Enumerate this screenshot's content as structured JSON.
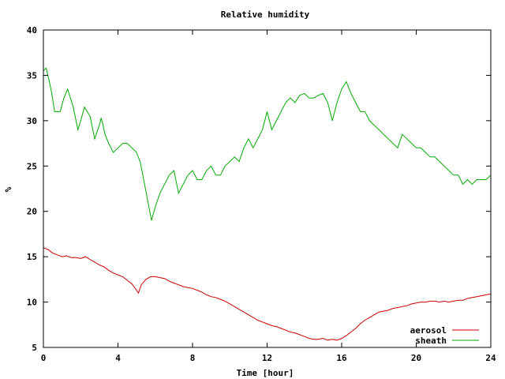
{
  "chart_data": {
    "type": "line",
    "title": "Relative humidity",
    "xlabel": "Time [hour]",
    "ylabel": "%",
    "xlim": [
      0,
      24
    ],
    "ylim": [
      5,
      40
    ],
    "xticks": [
      0,
      4,
      8,
      12,
      16,
      20,
      24
    ],
    "yticks": [
      5,
      10,
      15,
      20,
      25,
      30,
      35,
      40
    ],
    "grid": false,
    "legend": "bottom-right",
    "series": [
      {
        "name": "aerosol",
        "color": "#cc0000",
        "x": [
          0,
          0.25,
          0.5,
          0.75,
          1,
          1.25,
          1.5,
          1.75,
          2,
          2.25,
          2.5,
          2.75,
          3,
          3.25,
          3.5,
          3.75,
          4,
          4.25,
          4.5,
          4.75,
          5,
          5.1,
          5.25,
          5.5,
          5.75,
          6,
          6.25,
          6.5,
          6.75,
          7,
          7.25,
          7.5,
          7.75,
          8,
          8.25,
          8.5,
          8.75,
          9,
          9.25,
          9.5,
          9.75,
          10,
          10.25,
          10.5,
          10.75,
          11,
          11.25,
          11.5,
          11.75,
          12,
          12.25,
          12.5,
          12.75,
          13,
          13.25,
          13.5,
          13.75,
          14,
          14.25,
          14.5,
          14.75,
          15,
          15.25,
          15.5,
          15.75,
          16,
          16.25,
          16.5,
          16.75,
          17,
          17.25,
          17.5,
          17.75,
          18,
          18.25,
          18.5,
          18.75,
          19,
          19.25,
          19.5,
          19.75,
          20,
          20.25,
          20.5,
          20.75,
          21,
          21.25,
          21.5,
          21.75,
          22,
          22.25,
          22.5,
          22.75,
          23,
          23.25,
          23.5,
          23.75,
          24
        ],
        "y": [
          16.0,
          15.8,
          15.4,
          15.2,
          15.0,
          15.1,
          14.9,
          14.9,
          14.8,
          15.0,
          14.7,
          14.4,
          14.1,
          13.9,
          13.5,
          13.2,
          13.0,
          12.8,
          12.4,
          12.0,
          11.3,
          11.0,
          11.9,
          12.5,
          12.8,
          12.8,
          12.7,
          12.6,
          12.3,
          12.1,
          11.9,
          11.7,
          11.6,
          11.5,
          11.3,
          11.1,
          10.8,
          10.6,
          10.5,
          10.3,
          10.1,
          9.8,
          9.5,
          9.2,
          8.9,
          8.6,
          8.3,
          8.0,
          7.8,
          7.6,
          7.4,
          7.3,
          7.1,
          6.9,
          6.7,
          6.6,
          6.4,
          6.2,
          6.0,
          5.9,
          5.9,
          6.0,
          5.8,
          5.9,
          5.8,
          6.0,
          6.3,
          6.7,
          7.1,
          7.6,
          8.0,
          8.3,
          8.6,
          8.9,
          9.0,
          9.1,
          9.3,
          9.4,
          9.5,
          9.6,
          9.8,
          9.9,
          10.0,
          10.0,
          10.1,
          10.1,
          10.0,
          10.1,
          10.0,
          10.1,
          10.2,
          10.2,
          10.4,
          10.5,
          10.6,
          10.7,
          10.8,
          10.9
        ]
      },
      {
        "name": "sheath",
        "color": "#00aa00",
        "x": [
          0,
          0.15,
          0.3,
          0.45,
          0.6,
          0.9,
          1.1,
          1.3,
          1.6,
          1.85,
          2.0,
          2.2,
          2.5,
          2.75,
          3.0,
          3.1,
          3.2,
          3.3,
          3.5,
          3.75,
          4.0,
          4.25,
          4.5,
          4.75,
          5.0,
          5.2,
          5.8,
          6.0,
          6.25,
          6.5,
          6.75,
          7.0,
          7.25,
          7.5,
          7.75,
          8.0,
          8.25,
          8.5,
          8.75,
          9.0,
          9.25,
          9.5,
          9.75,
          10.0,
          10.25,
          10.5,
          10.75,
          11.0,
          11.25,
          11.5,
          11.75,
          12.0,
          12.25,
          12.5,
          12.75,
          13.0,
          13.25,
          13.5,
          13.75,
          14.0,
          14.25,
          14.5,
          14.75,
          15.0,
          15.25,
          15.5,
          15.75,
          16.0,
          16.25,
          16.5,
          16.75,
          17.0,
          17.25,
          17.5,
          17.75,
          18.0,
          18.25,
          18.5,
          18.75,
          19.0,
          19.25,
          19.5,
          19.75,
          20.0,
          20.25,
          20.5,
          20.75,
          21.0,
          21.25,
          21.5,
          21.75,
          22.0,
          22.25,
          22.5,
          22.75,
          23.0,
          23.25,
          23.5,
          23.75,
          24
        ],
        "y": [
          35.5,
          35.8,
          34.5,
          33.0,
          31.0,
          31.0,
          32.5,
          33.5,
          31.5,
          29.0,
          30.0,
          31.5,
          30.5,
          28.0,
          29.5,
          30.3,
          29.5,
          28.5,
          27.5,
          26.5,
          27.0,
          27.5,
          27.5,
          27.0,
          26.5,
          25.4,
          19.0,
          20.5,
          22.0,
          23.0,
          24.0,
          24.5,
          22.0,
          23.0,
          24.0,
          24.5,
          23.5,
          23.5,
          24.5,
          25.0,
          24.0,
          24.0,
          25.0,
          25.5,
          26.0,
          25.5,
          27.0,
          28.0,
          27.0,
          28.0,
          29.0,
          31.0,
          29.0,
          30.0,
          31.0,
          32.0,
          32.5,
          32.0,
          32.8,
          33.0,
          32.5,
          32.5,
          32.8,
          33.0,
          32.0,
          30.0,
          32.0,
          33.5,
          34.3,
          33.0,
          32.0,
          31.0,
          31.0,
          30.0,
          29.5,
          29.0,
          28.5,
          28.0,
          27.5,
          27.0,
          28.5,
          28.0,
          27.5,
          27.0,
          27.0,
          26.5,
          26.0,
          26.0,
          25.5,
          25.0,
          24.5,
          24.0,
          24.0,
          23.0,
          23.5,
          23.0,
          23.5,
          23.5,
          23.5,
          24.0
        ]
      }
    ]
  }
}
